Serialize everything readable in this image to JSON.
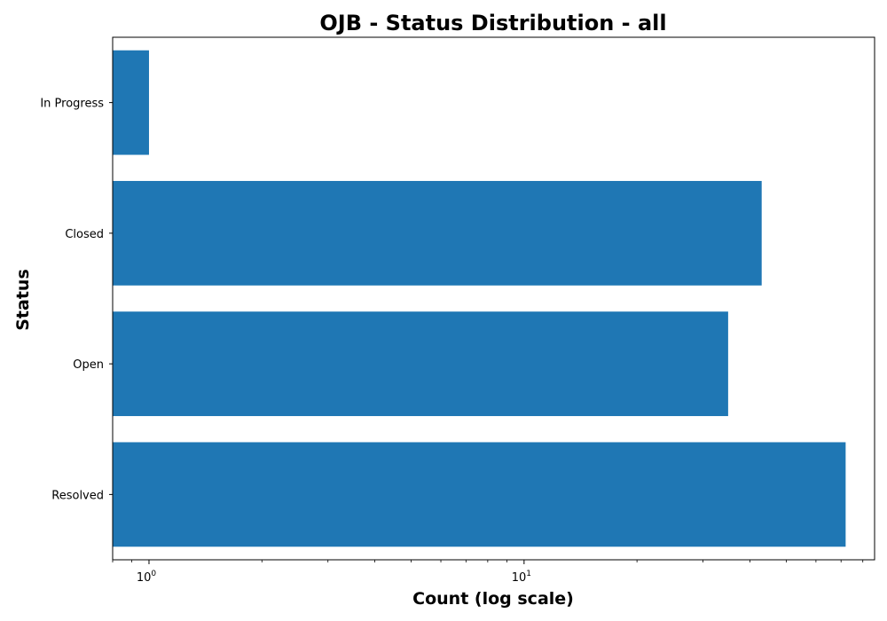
{
  "chart_data": {
    "type": "bar",
    "orientation": "horizontal",
    "title": "OJB - Status Distribution - all",
    "xlabel": "Count (log scale)",
    "ylabel": "Status",
    "x_scale": "log",
    "xlim": [
      0.8,
      86
    ],
    "categories": [
      "In Progress",
      "Closed",
      "Open",
      "Resolved"
    ],
    "values": [
      1,
      43,
      35,
      72
    ],
    "x_ticks": [
      {
        "base": "10",
        "exponent": "0",
        "value": 1
      },
      {
        "base": "10",
        "exponent": "1",
        "value": 10
      }
    ],
    "grid": false,
    "legend": "none",
    "bar_color": "#1f77b4"
  }
}
